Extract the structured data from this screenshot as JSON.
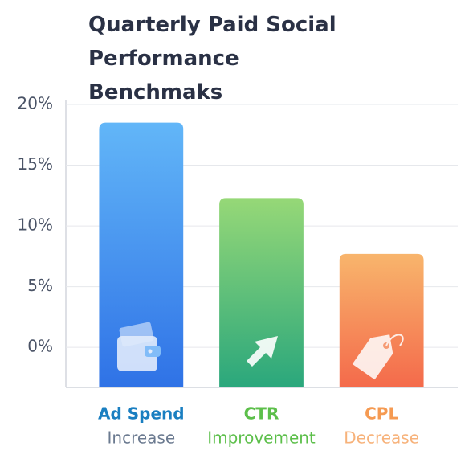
{
  "chart_data": {
    "type": "bar",
    "title": "Quarterly Paid Social Performance Benchmaks",
    "categories": [
      "Ad Spend",
      "CTR",
      "CPL"
    ],
    "category_sublabels": [
      "Increase",
      "Improvement",
      "Decrease"
    ],
    "values": [
      18.5,
      12.3,
      7.7
    ],
    "colors": [
      [
        "#62b6f8",
        "#2f72e6"
      ],
      [
        "#96d877",
        "#2aa77c"
      ],
      [
        "#f8b56c",
        "#f46a4b"
      ]
    ],
    "label_colors": [
      [
        "#1a7fc1",
        "#6b7a90"
      ],
      [
        "#5cbf4a",
        "#5cbf4a"
      ],
      [
        "#f59a52",
        "#f7b27a"
      ]
    ],
    "ylim": [
      -3.3,
      20
    ],
    "yticks": [
      {
        "value": 0,
        "label": "0%"
      },
      {
        "value": 5,
        "label": "5%"
      },
      {
        "value": 10,
        "label": "10%"
      },
      {
        "value": 15,
        "label": "15%"
      },
      {
        "value": 20,
        "label": "20%"
      }
    ],
    "grid": true
  }
}
